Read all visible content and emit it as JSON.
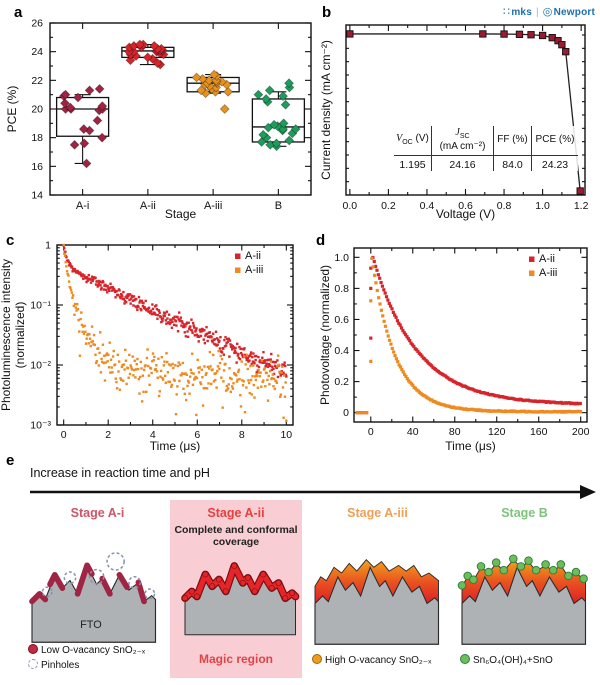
{
  "panels": {
    "a": {
      "label": "a"
    },
    "b": {
      "label": "b",
      "logos": {
        "mks": "mks",
        "newport": "Newport"
      },
      "table": {
        "headers": [
          {
            "sym": "V",
            "sub": "OC",
            "unit": "(V)"
          },
          {
            "sym": "J",
            "sub": "SC",
            "unit": "(mA cm⁻²)"
          },
          {
            "plain": "FF (%)"
          },
          {
            "plain": "PCE (%)"
          }
        ],
        "values": [
          "1.195",
          "24.16",
          "84.0",
          "24.23"
        ]
      }
    },
    "c": {
      "label": "c"
    },
    "d": {
      "label": "d"
    },
    "e": {
      "label": "e",
      "arrow_title": "Increase in reaction time and pH",
      "fto_label": "FTO",
      "stages": [
        {
          "title": "Stage A-i",
          "title_color": "#CE5468",
          "legend": [
            {
              "label": "Low O-vacancy SnO₂₋ₓ",
              "swatch_color": "#C22B3E"
            },
            {
              "label": "Pinholes",
              "swatch_color": "#8892B0"
            }
          ]
        },
        {
          "title": "Stage A-ii",
          "title_color": "#E8403C",
          "subtitle": "Complete and conformal coverage",
          "bg_color": "#F8CDD3",
          "footer": "Magic region",
          "footer_color": "#E04448"
        },
        {
          "title": "Stage A-iii",
          "title_color": "#EF9F53",
          "legend": [
            {
              "label": "High O-vacancy SnO₂₋ₓ",
              "swatch_color": "#F09A1E"
            }
          ]
        },
        {
          "title": "Stage B",
          "title_color": "#7CC479",
          "legend": [
            {
              "label": "Sn₆O₄(OH)₄+SnO",
              "swatch_color": "#6CBE5B"
            }
          ]
        }
      ]
    }
  },
  "chart_data": [
    {
      "id": "a",
      "type": "box-scatter",
      "xlabel": "Stage",
      "ylabel": "PCE (%)",
      "ylim": [
        14,
        26
      ],
      "yticks_major": 2,
      "categories": [
        "A-i",
        "A-ii",
        "A-iii",
        "B"
      ],
      "series": [
        {
          "name": "A-i",
          "color": "#A02443",
          "box": {
            "lo": 16.2,
            "q1": 18.1,
            "median": 20.0,
            "q3": 20.8,
            "hi": 21.0
          },
          "points": [
            16.2,
            17.5,
            17.6,
            18.0,
            18.5,
            18.6,
            19.2,
            19.9,
            20.0,
            20.0,
            20.0,
            20.1,
            20.2,
            20.4,
            20.8,
            20.9,
            21.0,
            21.3,
            21.4
          ]
        },
        {
          "name": "A-ii",
          "color": "#D6252B",
          "box": {
            "lo": 23.1,
            "q1": 23.6,
            "median": 24.05,
            "q3": 24.3,
            "hi": 24.5
          },
          "points": [
            23.1,
            23.2,
            23.4,
            23.5,
            23.6,
            23.7,
            23.8,
            23.8,
            23.9,
            24.0,
            24.0,
            24.0,
            24.1,
            24.1,
            24.1,
            24.2,
            24.2,
            24.3,
            24.3,
            24.4,
            24.4,
            24.5,
            24.5
          ]
        },
        {
          "name": "A-iii",
          "color": "#E8921E",
          "box": {
            "lo": 21.1,
            "q1": 21.2,
            "median": 21.8,
            "q3": 22.2,
            "hi": 22.4
          },
          "points": [
            20.0,
            21.1,
            21.2,
            21.2,
            21.3,
            21.4,
            21.5,
            21.6,
            21.7,
            21.7,
            21.8,
            21.8,
            21.9,
            21.9,
            22.0,
            22.0,
            22.1,
            22.2,
            22.3,
            22.4
          ]
        },
        {
          "name": "B",
          "color": "#1E9C5C",
          "box": {
            "lo": 17.4,
            "q1": 17.7,
            "median": 18.75,
            "q3": 20.7,
            "hi": 21.2
          },
          "points": [
            17.4,
            17.5,
            17.6,
            17.7,
            17.8,
            18.0,
            18.2,
            18.3,
            18.5,
            18.6,
            18.6,
            18.7,
            18.8,
            18.9,
            19.0,
            20.3,
            20.5,
            20.7,
            20.9,
            21.0,
            21.3,
            21.5,
            21.8
          ]
        }
      ]
    },
    {
      "id": "b",
      "type": "line-scatter",
      "xlabel": "Voltage (V)",
      "ylabel": "Current density (mA cm⁻²)",
      "xlim": [
        -0.02,
        1.22
      ],
      "ylim": [
        0,
        25.5
      ],
      "xticks": [
        0.0,
        0.2,
        0.4,
        0.6,
        0.8,
        1.0,
        1.2
      ],
      "marker_color": "#9B1B30",
      "line_color": "#222222",
      "points": [
        [
          0.0,
          24.16
        ],
        [
          0.69,
          24.16
        ],
        [
          0.8,
          24.14
        ],
        [
          0.88,
          24.1
        ],
        [
          0.94,
          24.04
        ],
        [
          1.0,
          23.93
        ],
        [
          1.05,
          23.6
        ],
        [
          1.08,
          23.15
        ],
        [
          1.1,
          22.55
        ],
        [
          1.12,
          21.5
        ],
        [
          1.195,
          0.6
        ]
      ]
    },
    {
      "id": "c",
      "type": "scatter",
      "xlabel": "Time (μs)",
      "ylabel_lines": [
        "Photoluminescence intensity",
        "(normalized)"
      ],
      "xlim": [
        -0.3,
        10.3
      ],
      "ylog_range": [
        0.001,
        1
      ],
      "xticks": [
        0,
        2,
        4,
        6,
        8,
        10
      ],
      "yticks": [
        "1",
        "10⁻¹",
        "10⁻²",
        "10⁻³"
      ],
      "legend_position": "top-right",
      "series": [
        {
          "name": "A-ii",
          "color": "#D6252B",
          "n_points": 400,
          "key_points": [
            [
              0,
              1.0
            ],
            [
              0.05,
              0.8
            ],
            [
              0.1,
              0.67
            ],
            [
              0.2,
              0.52
            ],
            [
              0.3,
              0.44
            ],
            [
              0.5,
              0.37
            ],
            [
              0.75,
              0.33
            ],
            [
              1,
              0.295
            ],
            [
              1.5,
              0.24
            ],
            [
              2,
              0.19
            ],
            [
              2.5,
              0.155
            ],
            [
              3,
              0.125
            ],
            [
              3.5,
              0.1
            ],
            [
              4,
              0.082
            ],
            [
              4.5,
              0.066
            ],
            [
              5,
              0.054
            ],
            [
              5.5,
              0.044
            ],
            [
              6,
              0.036
            ],
            [
              6.5,
              0.029
            ],
            [
              7,
              0.024
            ],
            [
              7.5,
              0.019
            ],
            [
              8,
              0.016
            ],
            [
              8.5,
              0.013
            ],
            [
              9,
              0.011
            ],
            [
              9.5,
              0.009
            ],
            [
              10,
              0.0075
            ]
          ]
        },
        {
          "name": "A-iii",
          "color": "#EE8A21",
          "n_points": 330,
          "key_points": [
            [
              0,
              0.95
            ],
            [
              0.05,
              0.7
            ],
            [
              0.1,
              0.51
            ],
            [
              0.2,
              0.3
            ],
            [
              0.3,
              0.185
            ],
            [
              0.4,
              0.125
            ],
            [
              0.5,
              0.088
            ],
            [
              0.75,
              0.05
            ],
            [
              1,
              0.032
            ],
            [
              1.5,
              0.016
            ],
            [
              2,
              0.012
            ],
            [
              2.5,
              0.01
            ],
            [
              3,
              0.009
            ],
            [
              4,
              0.008
            ],
            [
              5,
              0.0075
            ],
            [
              6,
              0.007
            ],
            [
              7,
              0.007
            ],
            [
              8,
              0.0065
            ],
            [
              9,
              0.0065
            ],
            [
              10,
              0.006
            ]
          ]
        }
      ]
    },
    {
      "id": "d",
      "type": "scatter",
      "xlabel": "Time (μs)",
      "ylabel": "Photovoltage (normalized)",
      "xlim": [
        -16,
        206
      ],
      "ylim": [
        -0.06,
        1.06
      ],
      "xticks": [
        0,
        40,
        80,
        120,
        160,
        200
      ],
      "yticks": [
        0,
        0.2,
        0.4,
        0.6,
        0.8,
        1.0
      ],
      "legend_position": "top-right",
      "series": [
        {
          "name": "A-ii",
          "color": "#D6252B",
          "pre": [
            [
              -13,
              0
            ],
            [
              -10,
              0
            ],
            [
              -7,
              0
            ],
            [
              -4,
              0
            ]
          ],
          "rise": [
            [
              0,
              0.48
            ],
            [
              0,
              0.8
            ],
            [
              0,
              0.93
            ]
          ],
          "decay": {
            "t0": 2,
            "amp": 0.95,
            "tau": 42,
            "offset": 0.05
          },
          "t_end": 200
        },
        {
          "name": "A-iii",
          "color": "#EE8A21",
          "pre": [
            [
              -13,
              0
            ],
            [
              -10,
              0
            ],
            [
              -7,
              0
            ],
            [
              -4,
              0
            ]
          ],
          "rise": [
            [
              0,
              0.33
            ],
            [
              0,
              0.72
            ]
          ],
          "decay": {
            "t0": 1,
            "amp": 0.99,
            "tau": 22,
            "offset": 0.006
          },
          "t_end": 200
        }
      ]
    }
  ]
}
